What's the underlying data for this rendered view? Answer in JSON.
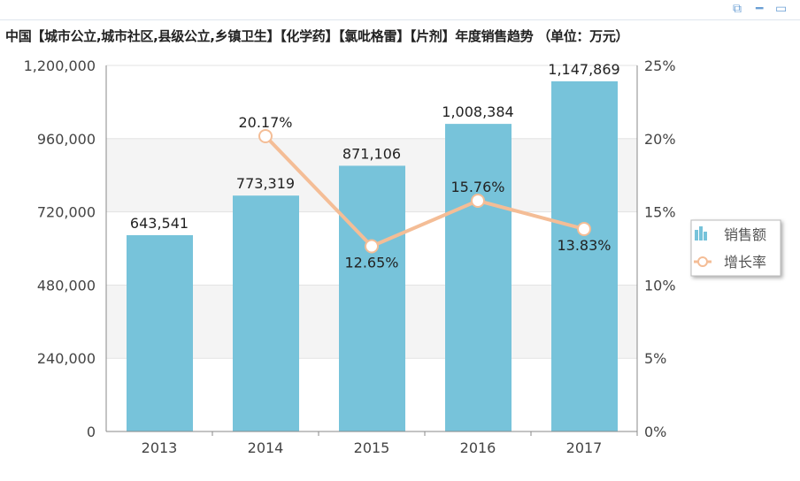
{
  "toolbar": {
    "icons": [
      "export-icon",
      "minimize-icon",
      "maximize-icon"
    ]
  },
  "chart_data": {
    "type": "bar",
    "title": "中国【城市公立,城市社区,县级公立,乡镇卫生】【化学药】【氯吡格雷】【片剂】年度销售趋势 （单位：万元）",
    "categories": [
      "2013",
      "2014",
      "2015",
      "2016",
      "2017"
    ],
    "series": [
      {
        "name": "销售额",
        "type": "bar",
        "axis": "left",
        "color": "#77c3da",
        "values": [
          643541,
          773319,
          871106,
          1008384,
          1147869
        ],
        "labels": [
          "643,541",
          "773,319",
          "871,106",
          "1,008,384",
          "1,147,869"
        ]
      },
      {
        "name": "增长率",
        "type": "line",
        "axis": "right",
        "color": "#f4bd96",
        "values": [
          null,
          20.17,
          12.65,
          15.76,
          13.83
        ],
        "labels": [
          "",
          "20.17%",
          "12.65%",
          "15.76%",
          "13.83%"
        ]
      }
    ],
    "ylim": [
      0,
      1200000
    ],
    "yticks": [
      "0",
      "240,000",
      "480,000",
      "720,000",
      "960,000",
      "1,200,000"
    ],
    "y2lim": [
      0,
      25
    ],
    "y2ticks": [
      "0%",
      "5%",
      "10%",
      "15%",
      "20%",
      "25%"
    ],
    "legend_placement": "right"
  }
}
